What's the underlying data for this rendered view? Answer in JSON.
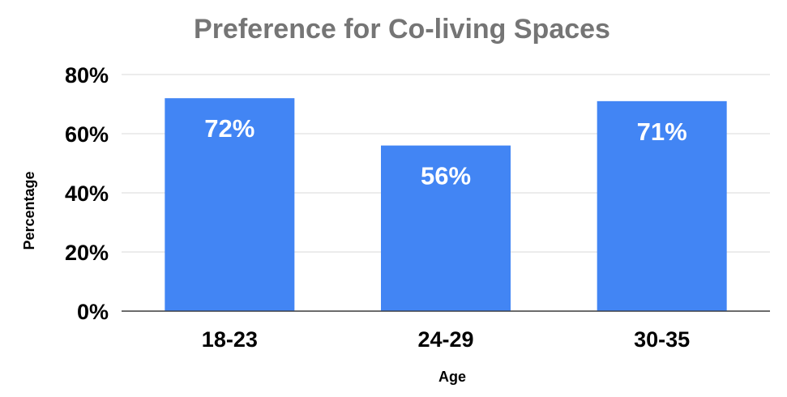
{
  "chart_data": {
    "type": "bar",
    "title": "Preference for Co-living Spaces",
    "xlabel": "Age",
    "ylabel": "Percentage",
    "categories": [
      "18-23",
      "24-29",
      "30-35"
    ],
    "values": [
      72,
      56,
      71
    ],
    "data_labels": [
      "72%",
      "56%",
      "71%"
    ],
    "ylim": [
      0,
      80
    ],
    "yticks": [
      0,
      20,
      40,
      60,
      80
    ],
    "ytick_labels": [
      "0%",
      "20%",
      "40%",
      "60%",
      "80%"
    ],
    "grid": true,
    "legend": "none",
    "colors": {
      "bar": "#4285f4",
      "title": "#757575",
      "grid": "#d9d9d9"
    }
  }
}
